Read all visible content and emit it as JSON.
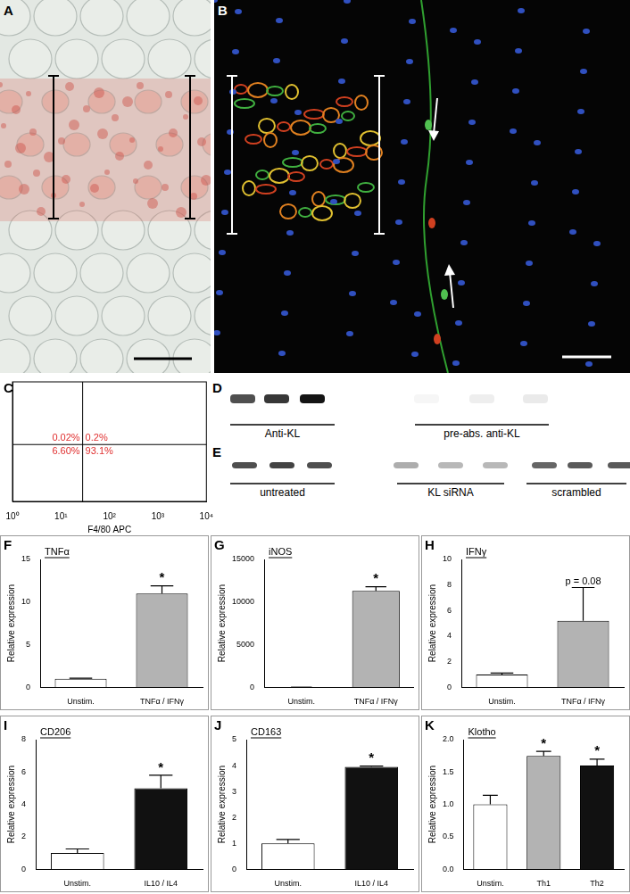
{
  "micrographs": [
    {
      "panel": "A"
    },
    {
      "panel": "B"
    }
  ],
  "blots": [
    {
      "panel": "D",
      "groups": [
        "Anti-KL",
        "pre-abs. anti-KL"
      ]
    },
    {
      "panel": "E",
      "groups": [
        "untreated",
        "KL siRNA",
        "scrambled"
      ]
    }
  ],
  "chart_data": [
    {
      "panel": "C",
      "type": "scatter",
      "x_label": "F4/80 APC",
      "log": true,
      "tick_labels": "x",
      "grid": false,
      "xlim": [
        1,
        10000
      ],
      "ylim": [
        1,
        10000
      ],
      "xticks": [
        {
          "value": 1,
          "label": "10⁰"
        },
        {
          "value": 10,
          "label": "10¹"
        },
        {
          "value": 100,
          "label": "10²"
        },
        {
          "value": 1000,
          "label": "10³"
        },
        {
          "value": 10000,
          "label": "10⁴"
        }
      ],
      "gates": {
        "x": 28,
        "y": 80
      },
      "quadrants": {
        "values": [
          0.02,
          0.2,
          6.6,
          93.1
        ],
        "value_labels": [
          "0.02%",
          "0.2%",
          "6.60%",
          "93.1%"
        ],
        "color": "#e03030"
      }
    },
    {
      "panel": "F",
      "type": "bar",
      "title": "TNFα",
      "y_label": "Relative expression",
      "grid": false,
      "categories": [
        "Unstim.",
        "TNFα / IFNγ"
      ],
      "values": [
        1,
        11
      ],
      "errors": [
        0.05,
        0.9
      ],
      "colors": [
        "#ffffff",
        "#b3b3b3"
      ],
      "bar_labels": [
        null,
        "*"
      ],
      "ylim": [
        0,
        15
      ],
      "yticks": [
        0,
        5,
        10,
        15
      ]
    },
    {
      "panel": "G",
      "type": "bar",
      "title": "iNOS",
      "y_label": "Relative expression",
      "grid": false,
      "categories": [
        "Unstim.",
        "TNFα / IFNγ"
      ],
      "values": [
        1,
        11300
      ],
      "errors": [
        0,
        500
      ],
      "colors": [
        "#ffffff",
        "#b3b3b3"
      ],
      "bar_labels": [
        null,
        "*"
      ],
      "ylim": [
        0,
        15000
      ],
      "yticks": [
        0,
        5000,
        10000,
        15000
      ]
    },
    {
      "panel": "H",
      "type": "bar",
      "title": "IFNγ",
      "y_label": "Relative expression",
      "grid": false,
      "categories": [
        "Unstim.",
        "TNFα / IFNγ"
      ],
      "values": [
        1,
        5.2
      ],
      "errors": [
        0.1,
        2.6
      ],
      "colors": [
        "#ffffff",
        "#b3b3b3"
      ],
      "bar_labels": [
        null,
        "p = 0.08"
      ],
      "ylim": [
        0,
        10
      ],
      "yticks": [
        0,
        2,
        4,
        6,
        8,
        10
      ]
    },
    {
      "panel": "I",
      "type": "bar",
      "title": "CD206",
      "y_label": "Relative expression",
      "grid": false,
      "categories": [
        "Unstim.",
        "IL10 / IL4"
      ],
      "values": [
        1,
        5
      ],
      "errors": [
        0.25,
        0.8
      ],
      "colors": [
        "#ffffff",
        "#111111"
      ],
      "bar_labels": [
        null,
        "*"
      ],
      "ylim": [
        0,
        8
      ],
      "yticks": [
        0,
        2,
        4,
        6,
        8
      ]
    },
    {
      "panel": "J",
      "type": "bar",
      "title": "CD163",
      "y_label": "Relative expression",
      "grid": false,
      "categories": [
        "Unstim.",
        "IL10 / IL4"
      ],
      "values": [
        1,
        3.95
      ],
      "errors": [
        0.15,
        0.03
      ],
      "colors": [
        "#ffffff",
        "#111111"
      ],
      "bar_labels": [
        null,
        "*"
      ],
      "ylim": [
        0,
        5
      ],
      "yticks": [
        0,
        1,
        2,
        3,
        4,
        5
      ]
    },
    {
      "panel": "K",
      "type": "bar",
      "title": "Klotho",
      "y_label": "Relative expression",
      "grid": false,
      "categories": [
        "Unstim.",
        "Th1",
        "Th2"
      ],
      "values": [
        1,
        1.75,
        1.6
      ],
      "errors": [
        0.14,
        0.07,
        0.1
      ],
      "colors": [
        "#ffffff",
        "#b3b3b3",
        "#111111"
      ],
      "bar_labels": [
        null,
        "*",
        "*"
      ],
      "ylim": [
        0,
        2
      ],
      "yticks": [
        {
          "value": 0,
          "label": "0.0"
        },
        {
          "value": 0.5,
          "label": "0.5"
        },
        {
          "value": 1,
          "label": "1.0"
        },
        {
          "value": 1.5,
          "label": "1.5"
        },
        {
          "value": 2,
          "label": "2.0"
        }
      ]
    }
  ]
}
